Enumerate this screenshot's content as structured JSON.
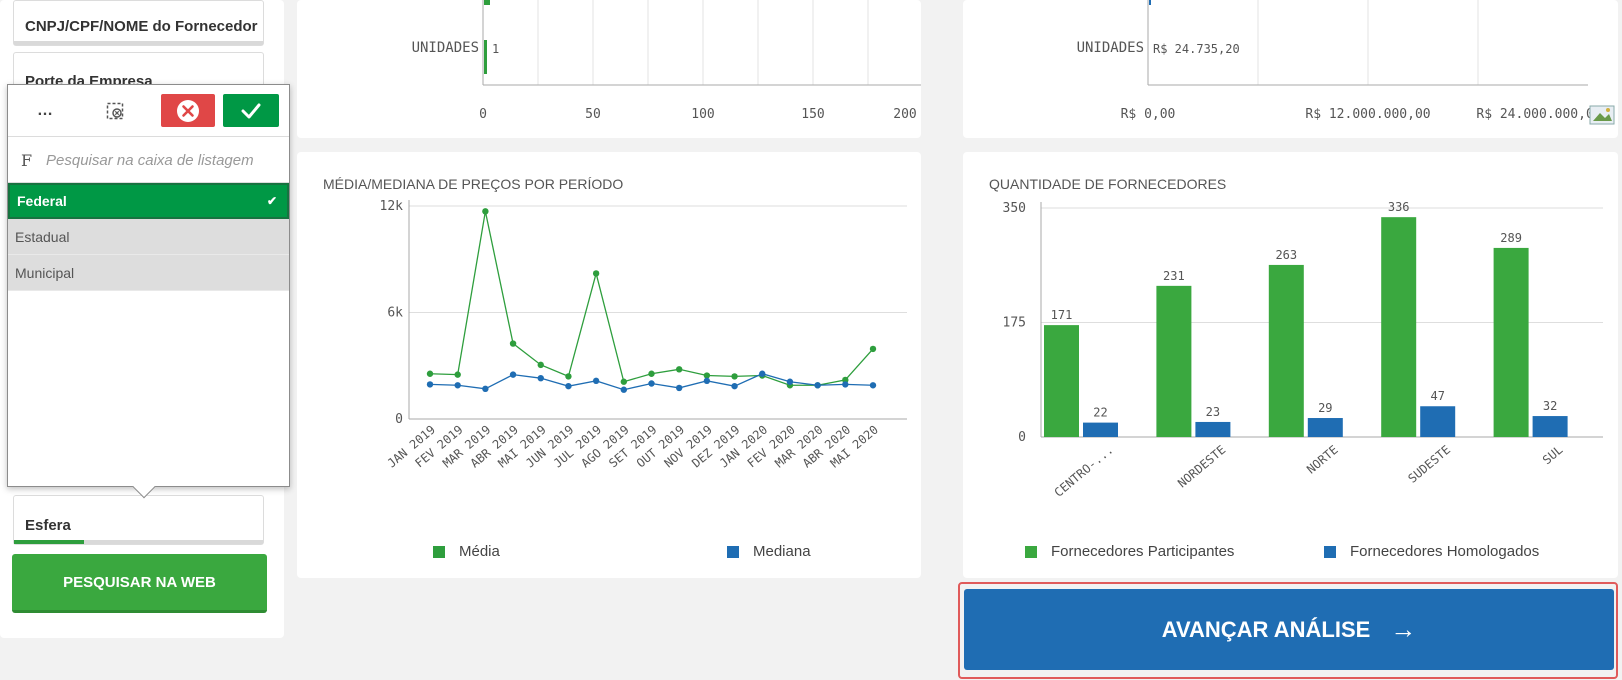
{
  "filters": {
    "supplier_label": "CNPJ/CPF/NOME do Fornecedor",
    "company_size_label": "Porte da Empresa",
    "esfera_label": "Esfera",
    "search_web_label": "PESQUISAR NA WEB",
    "esfera_progress_pct": 28
  },
  "listbox": {
    "more_icon": "…",
    "search_prefix": "F",
    "search_placeholder": "Pesquisar na caixa de listagem",
    "items": [
      {
        "label": "Federal",
        "state": "selected"
      },
      {
        "label": "Estadual",
        "state": "alternative"
      },
      {
        "label": "Municipal",
        "state": "alternative"
      }
    ]
  },
  "top_left_chart": {
    "category_label": "UNIDADES",
    "value_label": "1",
    "x_ticks": [
      "0",
      "50",
      "100",
      "150",
      "200"
    ]
  },
  "top_right_chart": {
    "category_label": "UNIDADES",
    "value_label": "R$ 24.735,20",
    "x_ticks": [
      "R$ 0,00",
      "R$ 12.000.000,00",
      "R$ 24.000.000,00"
    ]
  },
  "price_chart": {
    "title": "MÉDIA/MEDIANA DE PREÇOS POR PERÍODO",
    "colors": {
      "media": "#2e9e3d",
      "mediana": "#1f6db3"
    },
    "chart_data": {
      "type": "line",
      "categories": [
        "JAN 2019",
        "FEV 2019",
        "MAR 2019",
        "ABR 2019",
        "MAI 2019",
        "JUN 2019",
        "JUL 2019",
        "AGO 2019",
        "SET 2019",
        "OUT 2019",
        "NOV 2019",
        "DEZ 2019",
        "JAN 2020",
        "FEV 2020",
        "MAR 2020",
        "ABR 2020",
        "MAI 2020"
      ],
      "series": [
        {
          "name": "Média",
          "values": [
            2550,
            2500,
            11700,
            4250,
            3050,
            2400,
            8200,
            2100,
            2550,
            2800,
            2450,
            2400,
            2450,
            1900,
            1900,
            2200,
            3950
          ]
        },
        {
          "name": "Mediana",
          "values": [
            1950,
            1900,
            1700,
            2500,
            2300,
            1850,
            2150,
            1650,
            2000,
            1750,
            2150,
            1850,
            2550,
            2100,
            1900,
            1950,
            1900
          ]
        }
      ],
      "y_ticks": [
        "0",
        "6k",
        "12k"
      ],
      "ylim": [
        0,
        12000
      ]
    }
  },
  "supplier_chart": {
    "title": "QUANTIDADE DE FORNECEDORES",
    "colors": {
      "participantes": "#3aa83f",
      "homologados": "#1f6db3"
    },
    "chart_data": {
      "type": "bar",
      "categories": [
        "CENTRO-...",
        "NORDESTE",
        "NORTE",
        "SUDESTE",
        "SUL"
      ],
      "series": [
        {
          "name": "Fornecedores Participantes",
          "values": [
            171,
            231,
            263,
            336,
            289
          ]
        },
        {
          "name": "Fornecedores Homologados",
          "values": [
            22,
            23,
            29,
            47,
            32
          ]
        }
      ],
      "y_ticks": [
        "0",
        "175",
        "350"
      ],
      "ylim": [
        0,
        350
      ]
    }
  },
  "advance_button": {
    "label": "AVANÇAR ANÁLISE",
    "arrow": "→"
  }
}
